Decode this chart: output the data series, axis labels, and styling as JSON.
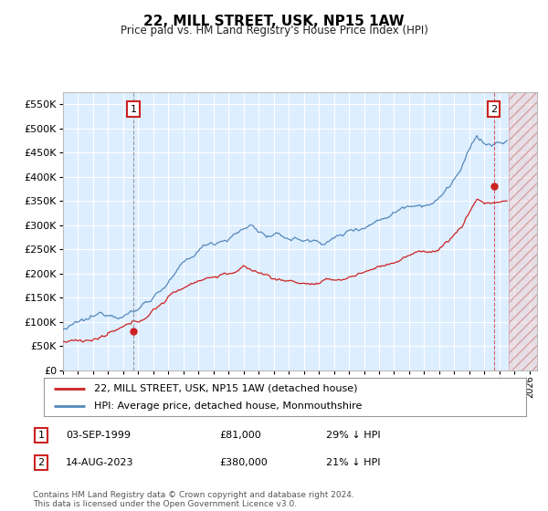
{
  "title": "22, MILL STREET, USK, NP15 1AW",
  "subtitle": "Price paid vs. HM Land Registry's House Price Index (HPI)",
  "ylim": [
    0,
    575000
  ],
  "yticks": [
    0,
    50000,
    100000,
    150000,
    200000,
    250000,
    300000,
    350000,
    400000,
    450000,
    500000,
    550000
  ],
  "ytick_labels": [
    "£0",
    "£50K",
    "£100K",
    "£150K",
    "£200K",
    "£250K",
    "£300K",
    "£350K",
    "£400K",
    "£450K",
    "£500K",
    "£550K"
  ],
  "xlim_start": 1995.0,
  "xlim_end": 2026.5,
  "background_color": "#ffffff",
  "plot_bg_color": "#ddeeff",
  "grid_color": "#ffffff",
  "hpi_line_color": "#5588bb",
  "price_line_color": "#cc2222",
  "sale1_x": 1999.67,
  "sale1_y": 81000,
  "sale1_label": "1",
  "sale2_x": 2023.62,
  "sale2_y": 380000,
  "sale2_label": "2",
  "legend_label1": "22, MILL STREET, USK, NP15 1AW (detached house)",
  "legend_label2": "HPI: Average price, detached house, Monmouthshire",
  "footer": "Contains HM Land Registry data © Crown copyright and database right 2024.\nThis data is licensed under the Open Government Licence v3.0.",
  "future_shade_start": 2024.62,
  "future_shade_end": 2026.5,
  "xtick_years": [
    1995,
    1996,
    1997,
    1998,
    1999,
    2000,
    2001,
    2002,
    2003,
    2004,
    2005,
    2006,
    2007,
    2008,
    2009,
    2010,
    2011,
    2012,
    2013,
    2014,
    2015,
    2016,
    2017,
    2018,
    2019,
    2020,
    2021,
    2022,
    2023,
    2024,
    2025,
    2026
  ]
}
